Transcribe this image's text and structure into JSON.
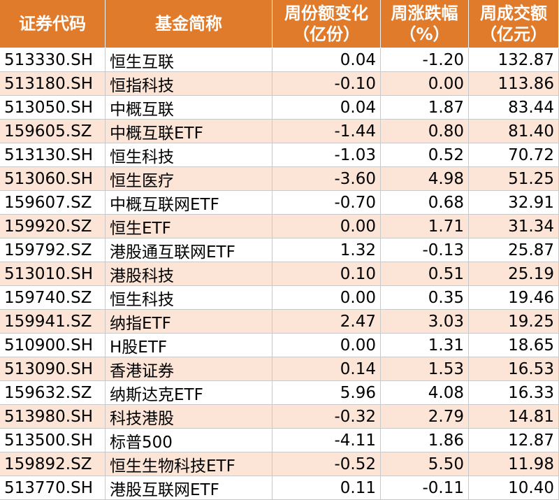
{
  "table": {
    "header": [
      [
        "证券代码"
      ],
      [
        "基金简称"
      ],
      [
        "周份额变化",
        "（亿份）"
      ],
      [
        "周涨跌幅",
        "（%）"
      ],
      [
        "周成交额",
        "（亿元）"
      ]
    ],
    "rows": [
      [
        "513330.SH",
        "恒生互联",
        "0.04",
        "-1.20",
        "132.87"
      ],
      [
        "513180.SH",
        "恒指科技",
        "-0.10",
        "0.00",
        "113.86"
      ],
      [
        "513050.SH",
        "中概互联",
        "0.04",
        "1.87",
        "83.44"
      ],
      [
        "159605.SZ",
        "中概互联ETF",
        "-1.44",
        "0.80",
        "81.40"
      ],
      [
        "513130.SH",
        "恒生科技",
        "-1.03",
        "0.52",
        "70.72"
      ],
      [
        "513060.SH",
        "恒生医疗",
        "-3.60",
        "4.98",
        "51.25"
      ],
      [
        "159607.SZ",
        "中概互联网ETF",
        "-0.70",
        "0.68",
        "32.91"
      ],
      [
        "159920.SZ",
        "恒生ETF",
        "0.00",
        "1.71",
        "31.34"
      ],
      [
        "159792.SZ",
        "港股通互联网ETF",
        "1.32",
        "-0.13",
        "25.87"
      ],
      [
        "513010.SH",
        "港股科技",
        "0.10",
        "0.51",
        "25.19"
      ],
      [
        "159740.SZ",
        "恒生科技",
        "0.00",
        "0.35",
        "19.46"
      ],
      [
        "159941.SZ",
        "纳指ETF",
        "2.47",
        "3.03",
        "19.25"
      ],
      [
        "510900.SH",
        "H股ETF",
        "0.00",
        "1.31",
        "18.65"
      ],
      [
        "513090.SH",
        "香港证券",
        "0.14",
        "1.53",
        "16.53"
      ],
      [
        "159632.SZ",
        "纳斯达克ETF",
        "5.96",
        "4.08",
        "16.33"
      ],
      [
        "513980.SH",
        "科技港股",
        "-0.32",
        "2.79",
        "14.81"
      ],
      [
        "513500.SH",
        "标普500",
        "-4.11",
        "1.86",
        "12.87"
      ],
      [
        "159892.SZ",
        "恒生生物科技ETF",
        "-0.52",
        "5.50",
        "11.98"
      ],
      [
        "513770.SH",
        "港股互联网ETF",
        "0.11",
        "-0.11",
        "10.40"
      ]
    ]
  }
}
